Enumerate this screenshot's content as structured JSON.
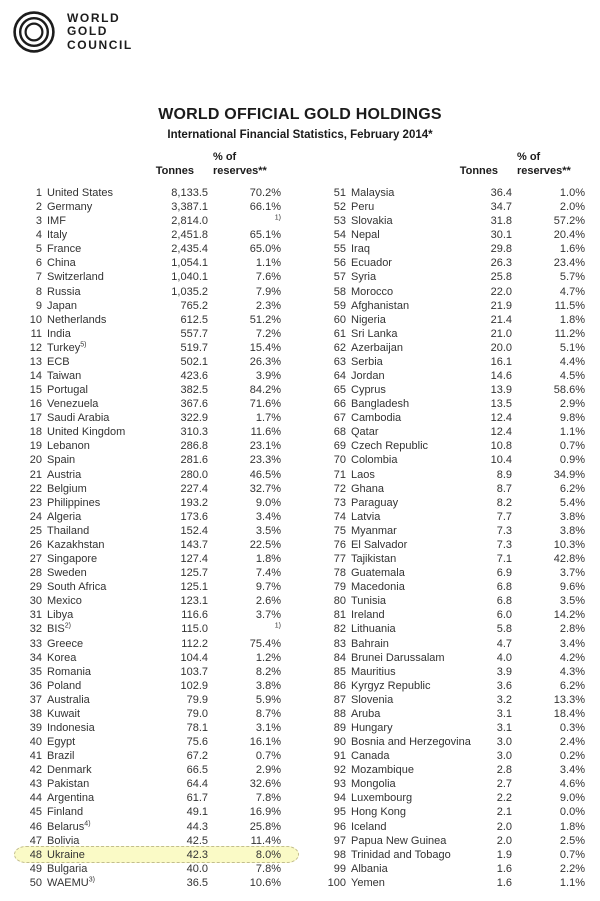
{
  "logo": {
    "lines": [
      "WORLD",
      "GOLD",
      "COUNCIL"
    ]
  },
  "title": "WORLD OFFICIAL GOLD HOLDINGS",
  "subtitle": "International Financial Statistics, February 2014*",
  "table": {
    "headers": {
      "tonnes": "Tonnes",
      "pct_top": "% of",
      "pct_bottom": "reserves**"
    },
    "highlight": {
      "rank": "48",
      "fill": "#fafac6",
      "border": "#c2bd8e"
    },
    "left_rows": [
      {
        "rank": "1",
        "name": "United States",
        "tonnes": "8,133.5",
        "pct": "70.2%"
      },
      {
        "rank": "2",
        "name": "Germany",
        "tonnes": "3,387.1",
        "pct": "66.1%"
      },
      {
        "rank": "3",
        "name": "IMF",
        "tonnes": "2,814.0",
        "pct": "",
        "pct_sup": "1)"
      },
      {
        "rank": "4",
        "name": "Italy",
        "tonnes": "2,451.8",
        "pct": "65.1%"
      },
      {
        "rank": "5",
        "name": "France",
        "tonnes": "2,435.4",
        "pct": "65.0%"
      },
      {
        "rank": "6",
        "name": "China",
        "tonnes": "1,054.1",
        "pct": "1.1%"
      },
      {
        "rank": "7",
        "name": "Switzerland",
        "tonnes": "1,040.1",
        "pct": "7.6%"
      },
      {
        "rank": "8",
        "name": "Russia",
        "tonnes": "1,035.2",
        "pct": "7.9%"
      },
      {
        "rank": "9",
        "name": "Japan",
        "tonnes": "765.2",
        "pct": "2.3%"
      },
      {
        "rank": "10",
        "name": "Netherlands",
        "tonnes": "612.5",
        "pct": "51.2%"
      },
      {
        "rank": "11",
        "name": "India",
        "tonnes": "557.7",
        "pct": "7.2%"
      },
      {
        "rank": "12",
        "name": "Turkey",
        "name_sup": "5)",
        "tonnes": "519.7",
        "pct": "15.4%"
      },
      {
        "rank": "13",
        "name": "ECB",
        "tonnes": "502.1",
        "pct": "26.3%"
      },
      {
        "rank": "14",
        "name": "Taiwan",
        "tonnes": "423.6",
        "pct": "3.9%"
      },
      {
        "rank": "15",
        "name": "Portugal",
        "tonnes": "382.5",
        "pct": "84.2%"
      },
      {
        "rank": "16",
        "name": "Venezuela",
        "tonnes": "367.6",
        "pct": "71.6%"
      },
      {
        "rank": "17",
        "name": "Saudi Arabia",
        "tonnes": "322.9",
        "pct": "1.7%"
      },
      {
        "rank": "18",
        "name": "United Kingdom",
        "tonnes": "310.3",
        "pct": "11.6%"
      },
      {
        "rank": "19",
        "name": "Lebanon",
        "tonnes": "286.8",
        "pct": "23.1%"
      },
      {
        "rank": "20",
        "name": "Spain",
        "tonnes": "281.6",
        "pct": "23.3%"
      },
      {
        "rank": "21",
        "name": "Austria",
        "tonnes": "280.0",
        "pct": "46.5%"
      },
      {
        "rank": "22",
        "name": "Belgium",
        "tonnes": "227.4",
        "pct": "32.7%"
      },
      {
        "rank": "23",
        "name": "Philippines",
        "tonnes": "193.2",
        "pct": "9.0%"
      },
      {
        "rank": "24",
        "name": "Algeria",
        "tonnes": "173.6",
        "pct": "3.4%"
      },
      {
        "rank": "25",
        "name": "Thailand",
        "tonnes": "152.4",
        "pct": "3.5%"
      },
      {
        "rank": "26",
        "name": "Kazakhstan",
        "tonnes": "143.7",
        "pct": "22.5%"
      },
      {
        "rank": "27",
        "name": "Singapore",
        "tonnes": "127.4",
        "pct": "1.8%"
      },
      {
        "rank": "28",
        "name": "Sweden",
        "tonnes": "125.7",
        "pct": "7.4%"
      },
      {
        "rank": "29",
        "name": "South Africa",
        "tonnes": "125.1",
        "pct": "9.7%"
      },
      {
        "rank": "30",
        "name": "Mexico",
        "tonnes": "123.1",
        "pct": "2.6%"
      },
      {
        "rank": "31",
        "name": "Libya",
        "tonnes": "116.6",
        "pct": "3.7%"
      },
      {
        "rank": "32",
        "name": "BIS",
        "name_sup": "2)",
        "tonnes": "115.0",
        "pct": "",
        "pct_sup": "1)"
      },
      {
        "rank": "33",
        "name": "Greece",
        "tonnes": "112.2",
        "pct": "75.4%"
      },
      {
        "rank": "34",
        "name": "Korea",
        "tonnes": "104.4",
        "pct": "1.2%"
      },
      {
        "rank": "35",
        "name": "Romania",
        "tonnes": "103.7",
        "pct": "8.2%"
      },
      {
        "rank": "36",
        "name": "Poland",
        "tonnes": "102.9",
        "pct": "3.8%"
      },
      {
        "rank": "37",
        "name": "Australia",
        "tonnes": "79.9",
        "pct": "5.9%"
      },
      {
        "rank": "38",
        "name": "Kuwait",
        "tonnes": "79.0",
        "pct": "8.7%"
      },
      {
        "rank": "39",
        "name": "Indonesia",
        "tonnes": "78.1",
        "pct": "3.1%"
      },
      {
        "rank": "40",
        "name": "Egypt",
        "tonnes": "75.6",
        "pct": "16.1%"
      },
      {
        "rank": "41",
        "name": "Brazil",
        "tonnes": "67.2",
        "pct": "0.7%"
      },
      {
        "rank": "42",
        "name": "Denmark",
        "tonnes": "66.5",
        "pct": "2.9%"
      },
      {
        "rank": "43",
        "name": "Pakistan",
        "tonnes": "64.4",
        "pct": "32.6%"
      },
      {
        "rank": "44",
        "name": "Argentina",
        "tonnes": "61.7",
        "pct": "7.8%"
      },
      {
        "rank": "45",
        "name": "Finland",
        "tonnes": "49.1",
        "pct": "16.9%"
      },
      {
        "rank": "46",
        "name": "Belarus",
        "name_sup": "4)",
        "tonnes": "44.3",
        "pct": "25.8%"
      },
      {
        "rank": "47",
        "name": "Bolivia",
        "tonnes": "42.5",
        "pct": "11.4%"
      },
      {
        "rank": "48",
        "name": "Ukraine",
        "tonnes": "42.3",
        "pct": "8.0%",
        "highlight": true
      },
      {
        "rank": "49",
        "name": "Bulgaria",
        "tonnes": "40.0",
        "pct": "7.8%"
      },
      {
        "rank": "50",
        "name": "WAEMU",
        "name_sup": "3)",
        "tonnes": "36.5",
        "pct": "10.6%"
      }
    ],
    "right_rows": [
      {
        "rank": "51",
        "name": "Malaysia",
        "tonnes": "36.4",
        "pct": "1.0%"
      },
      {
        "rank": "52",
        "name": "Peru",
        "tonnes": "34.7",
        "pct": "2.0%"
      },
      {
        "rank": "53",
        "name": "Slovakia",
        "tonnes": "31.8",
        "pct": "57.2%"
      },
      {
        "rank": "54",
        "name": "Nepal",
        "tonnes": "30.1",
        "pct": "20.4%"
      },
      {
        "rank": "55",
        "name": "Iraq",
        "tonnes": "29.8",
        "pct": "1.6%"
      },
      {
        "rank": "56",
        "name": "Ecuador",
        "tonnes": "26.3",
        "pct": "23.4%"
      },
      {
        "rank": "57",
        "name": "Syria",
        "tonnes": "25.8",
        "pct": "5.7%"
      },
      {
        "rank": "58",
        "name": "Morocco",
        "tonnes": "22.0",
        "pct": "4.7%"
      },
      {
        "rank": "59",
        "name": "Afghanistan",
        "tonnes": "21.9",
        "pct": "11.5%"
      },
      {
        "rank": "60",
        "name": "Nigeria",
        "tonnes": "21.4",
        "pct": "1.8%"
      },
      {
        "rank": "61",
        "name": "Sri Lanka",
        "tonnes": "21.0",
        "pct": "11.2%"
      },
      {
        "rank": "62",
        "name": "Azerbaijan",
        "tonnes": "20.0",
        "pct": "5.1%"
      },
      {
        "rank": "63",
        "name": "Serbia",
        "tonnes": "16.1",
        "pct": "4.4%"
      },
      {
        "rank": "64",
        "name": "Jordan",
        "tonnes": "14.6",
        "pct": "4.5%"
      },
      {
        "rank": "65",
        "name": "Cyprus",
        "tonnes": "13.9",
        "pct": "58.6%"
      },
      {
        "rank": "66",
        "name": "Bangladesh",
        "tonnes": "13.5",
        "pct": "2.9%"
      },
      {
        "rank": "67",
        "name": "Cambodia",
        "tonnes": "12.4",
        "pct": "9.8%"
      },
      {
        "rank": "68",
        "name": "Qatar",
        "tonnes": "12.4",
        "pct": "1.1%"
      },
      {
        "rank": "69",
        "name": "Czech Republic",
        "tonnes": "10.8",
        "pct": "0.7%"
      },
      {
        "rank": "70",
        "name": "Colombia",
        "tonnes": "10.4",
        "pct": "0.9%"
      },
      {
        "rank": "71",
        "name": "Laos",
        "tonnes": "8.9",
        "pct": "34.9%"
      },
      {
        "rank": "72",
        "name": "Ghana",
        "tonnes": "8.7",
        "pct": "6.2%"
      },
      {
        "rank": "73",
        "name": "Paraguay",
        "tonnes": "8.2",
        "pct": "5.4%"
      },
      {
        "rank": "74",
        "name": "Latvia",
        "tonnes": "7.7",
        "pct": "3.8%"
      },
      {
        "rank": "75",
        "name": "Myanmar",
        "tonnes": "7.3",
        "pct": "3.8%"
      },
      {
        "rank": "76",
        "name": "El Salvador",
        "tonnes": "7.3",
        "pct": "10.3%"
      },
      {
        "rank": "77",
        "name": "Tajikistan",
        "tonnes": "7.1",
        "pct": "42.8%"
      },
      {
        "rank": "78",
        "name": "Guatemala",
        "tonnes": "6.9",
        "pct": "3.7%"
      },
      {
        "rank": "79",
        "name": "Macedonia",
        "tonnes": "6.8",
        "pct": "9.6%"
      },
      {
        "rank": "80",
        "name": "Tunisia",
        "tonnes": "6.8",
        "pct": "3.5%"
      },
      {
        "rank": "81",
        "name": "Ireland",
        "tonnes": "6.0",
        "pct": "14.2%"
      },
      {
        "rank": "82",
        "name": "Lithuania",
        "tonnes": "5.8",
        "pct": "2.8%"
      },
      {
        "rank": "83",
        "name": "Bahrain",
        "tonnes": "4.7",
        "pct": "3.4%"
      },
      {
        "rank": "84",
        "name": "Brunei Darussalam",
        "tonnes": "4.0",
        "pct": "4.2%"
      },
      {
        "rank": "85",
        "name": "Mauritius",
        "tonnes": "3.9",
        "pct": "4.3%"
      },
      {
        "rank": "86",
        "name": "Kyrgyz Republic",
        "tonnes": "3.6",
        "pct": "6.2%"
      },
      {
        "rank": "87",
        "name": "Slovenia",
        "tonnes": "3.2",
        "pct": "13.3%"
      },
      {
        "rank": "88",
        "name": "Aruba",
        "tonnes": "3.1",
        "pct": "18.4%"
      },
      {
        "rank": "89",
        "name": "Hungary",
        "tonnes": "3.1",
        "pct": "0.3%"
      },
      {
        "rank": "90",
        "name": "Bosnia and Herzegovina",
        "tonnes": "3.0",
        "pct": "2.4%"
      },
      {
        "rank": "91",
        "name": "Canada",
        "tonnes": "3.0",
        "pct": "0.2%"
      },
      {
        "rank": "92",
        "name": "Mozambique",
        "tonnes": "2.8",
        "pct": "3.4%"
      },
      {
        "rank": "93",
        "name": "Mongolia",
        "tonnes": "2.7",
        "pct": "4.6%"
      },
      {
        "rank": "94",
        "name": "Luxembourg",
        "tonnes": "2.2",
        "pct": "9.0%"
      },
      {
        "rank": "95",
        "name": "Hong Kong",
        "tonnes": "2.1",
        "pct": "0.0%"
      },
      {
        "rank": "96",
        "name": "Iceland",
        "tonnes": "2.0",
        "pct": "1.8%"
      },
      {
        "rank": "97",
        "name": "Papua New Guinea",
        "tonnes": "2.0",
        "pct": "2.5%"
      },
      {
        "rank": "98",
        "name": "Trinidad and Tobago",
        "tonnes": "1.9",
        "pct": "0.7%"
      },
      {
        "rank": "99",
        "name": "Albania",
        "tonnes": "1.6",
        "pct": "2.2%"
      },
      {
        "rank": "100",
        "name": "Yemen",
        "tonnes": "1.6",
        "pct": "1.1%"
      }
    ]
  }
}
